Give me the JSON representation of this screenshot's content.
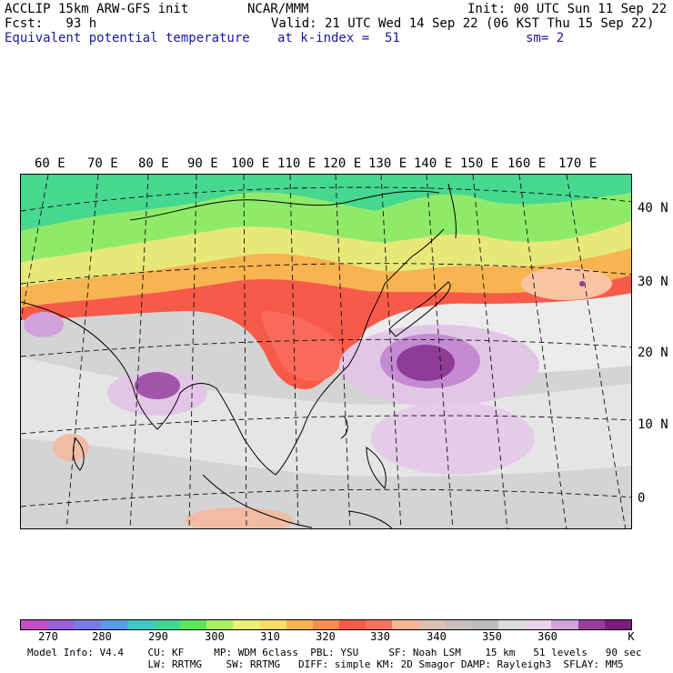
{
  "header": {
    "model": "ACCLIP 15km ARW-GFS init",
    "center": "NCAR/MMM",
    "init": "Init: 00 UTC Sun 11 Sep 22",
    "fcst": "Fcst:   93 h",
    "valid": "Valid: 21 UTC Wed 14 Sep 22 (06 KST Thu 15 Sep 22)",
    "field": "Equivalent potential temperature",
    "level": "at k-index =  51",
    "smooth": "sm= 2"
  },
  "map": {
    "lon_labels": [
      "60 E",
      "70 E",
      "80 E",
      "90 E",
      "100 E",
      "110 E",
      "120 E",
      "130 E",
      "140 E",
      "150 E",
      "160 E",
      "170 E"
    ],
    "lat_labels": [
      "40 N",
      "30 N",
      "20 N",
      "10 N",
      "0"
    ]
  },
  "colorbar": {
    "colors": [
      "#c44dc4",
      "#9b5fd6",
      "#7b7be8",
      "#5a9be8",
      "#3cc8c8",
      "#3cd896",
      "#5ae85a",
      "#a8f060",
      "#e8f078",
      "#f8dc64",
      "#f8b450",
      "#f88c4c",
      "#f85a4a",
      "#f87060",
      "#f8b496",
      "#e0c0b0",
      "#c8bebe",
      "#bcbcbc",
      "#dcdcdc",
      "#ead2ea",
      "#d2a2dc",
      "#9a3c9a",
      "#7c1c7c"
    ],
    "labels": [
      "270",
      "280",
      "290",
      "300",
      "310",
      "320",
      "330",
      "340",
      "350",
      "360"
    ],
    "unit": "K"
  },
  "footer": {
    "line1": "Model Info: V4.4    CU: KF     MP: WDM 6class  PBL: YSU     SF: Noah LSM    15 km   51 levels   90 sec",
    "line2": "                    LW: RRTMG    SW: RRTMG   DIFF: simple KM: 2D Smagor DAMP: Rayleigh3  SFLAY: MM5"
  }
}
